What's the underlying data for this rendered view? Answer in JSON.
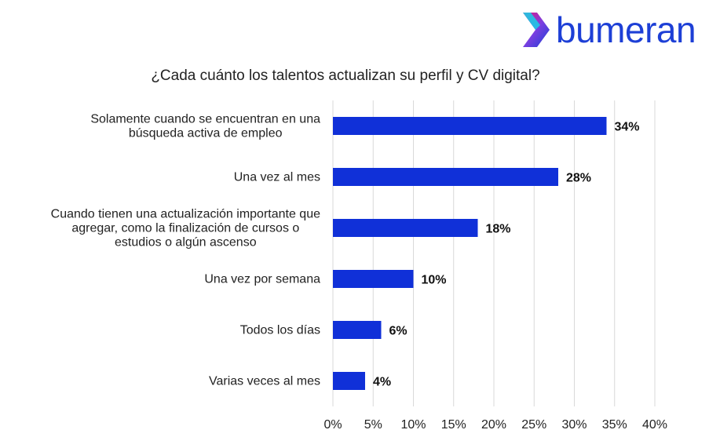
{
  "logo": {
    "text": "bumeran"
  },
  "chart_data": {
    "type": "bar",
    "orientation": "horizontal",
    "title": "¿Cada cuánto los talentos actualizan su perfil y CV digital?",
    "categories": [
      [
        "Solamente cuando se encuentran en una",
        "búsqueda activa de empleo"
      ],
      [
        "Una vez al mes"
      ],
      [
        "Cuando tienen una actualización importante que",
        "agregar, como la finalización de cursos o",
        "estudios o algún ascenso"
      ],
      [
        "Una vez por semana"
      ],
      [
        "Todos los días"
      ],
      [
        "Varias veces al mes"
      ]
    ],
    "values": [
      34,
      28,
      18,
      10,
      6,
      4
    ],
    "value_labels": [
      "34%",
      "28%",
      "18%",
      "10%",
      "6%",
      "4%"
    ],
    "xlim": [
      0,
      40
    ],
    "xticks": [
      "0%",
      "5%",
      "10%",
      "15%",
      "20%",
      "25%",
      "30%",
      "35%",
      "40%"
    ],
    "grid": true,
    "bar_color": "#1030d8"
  }
}
